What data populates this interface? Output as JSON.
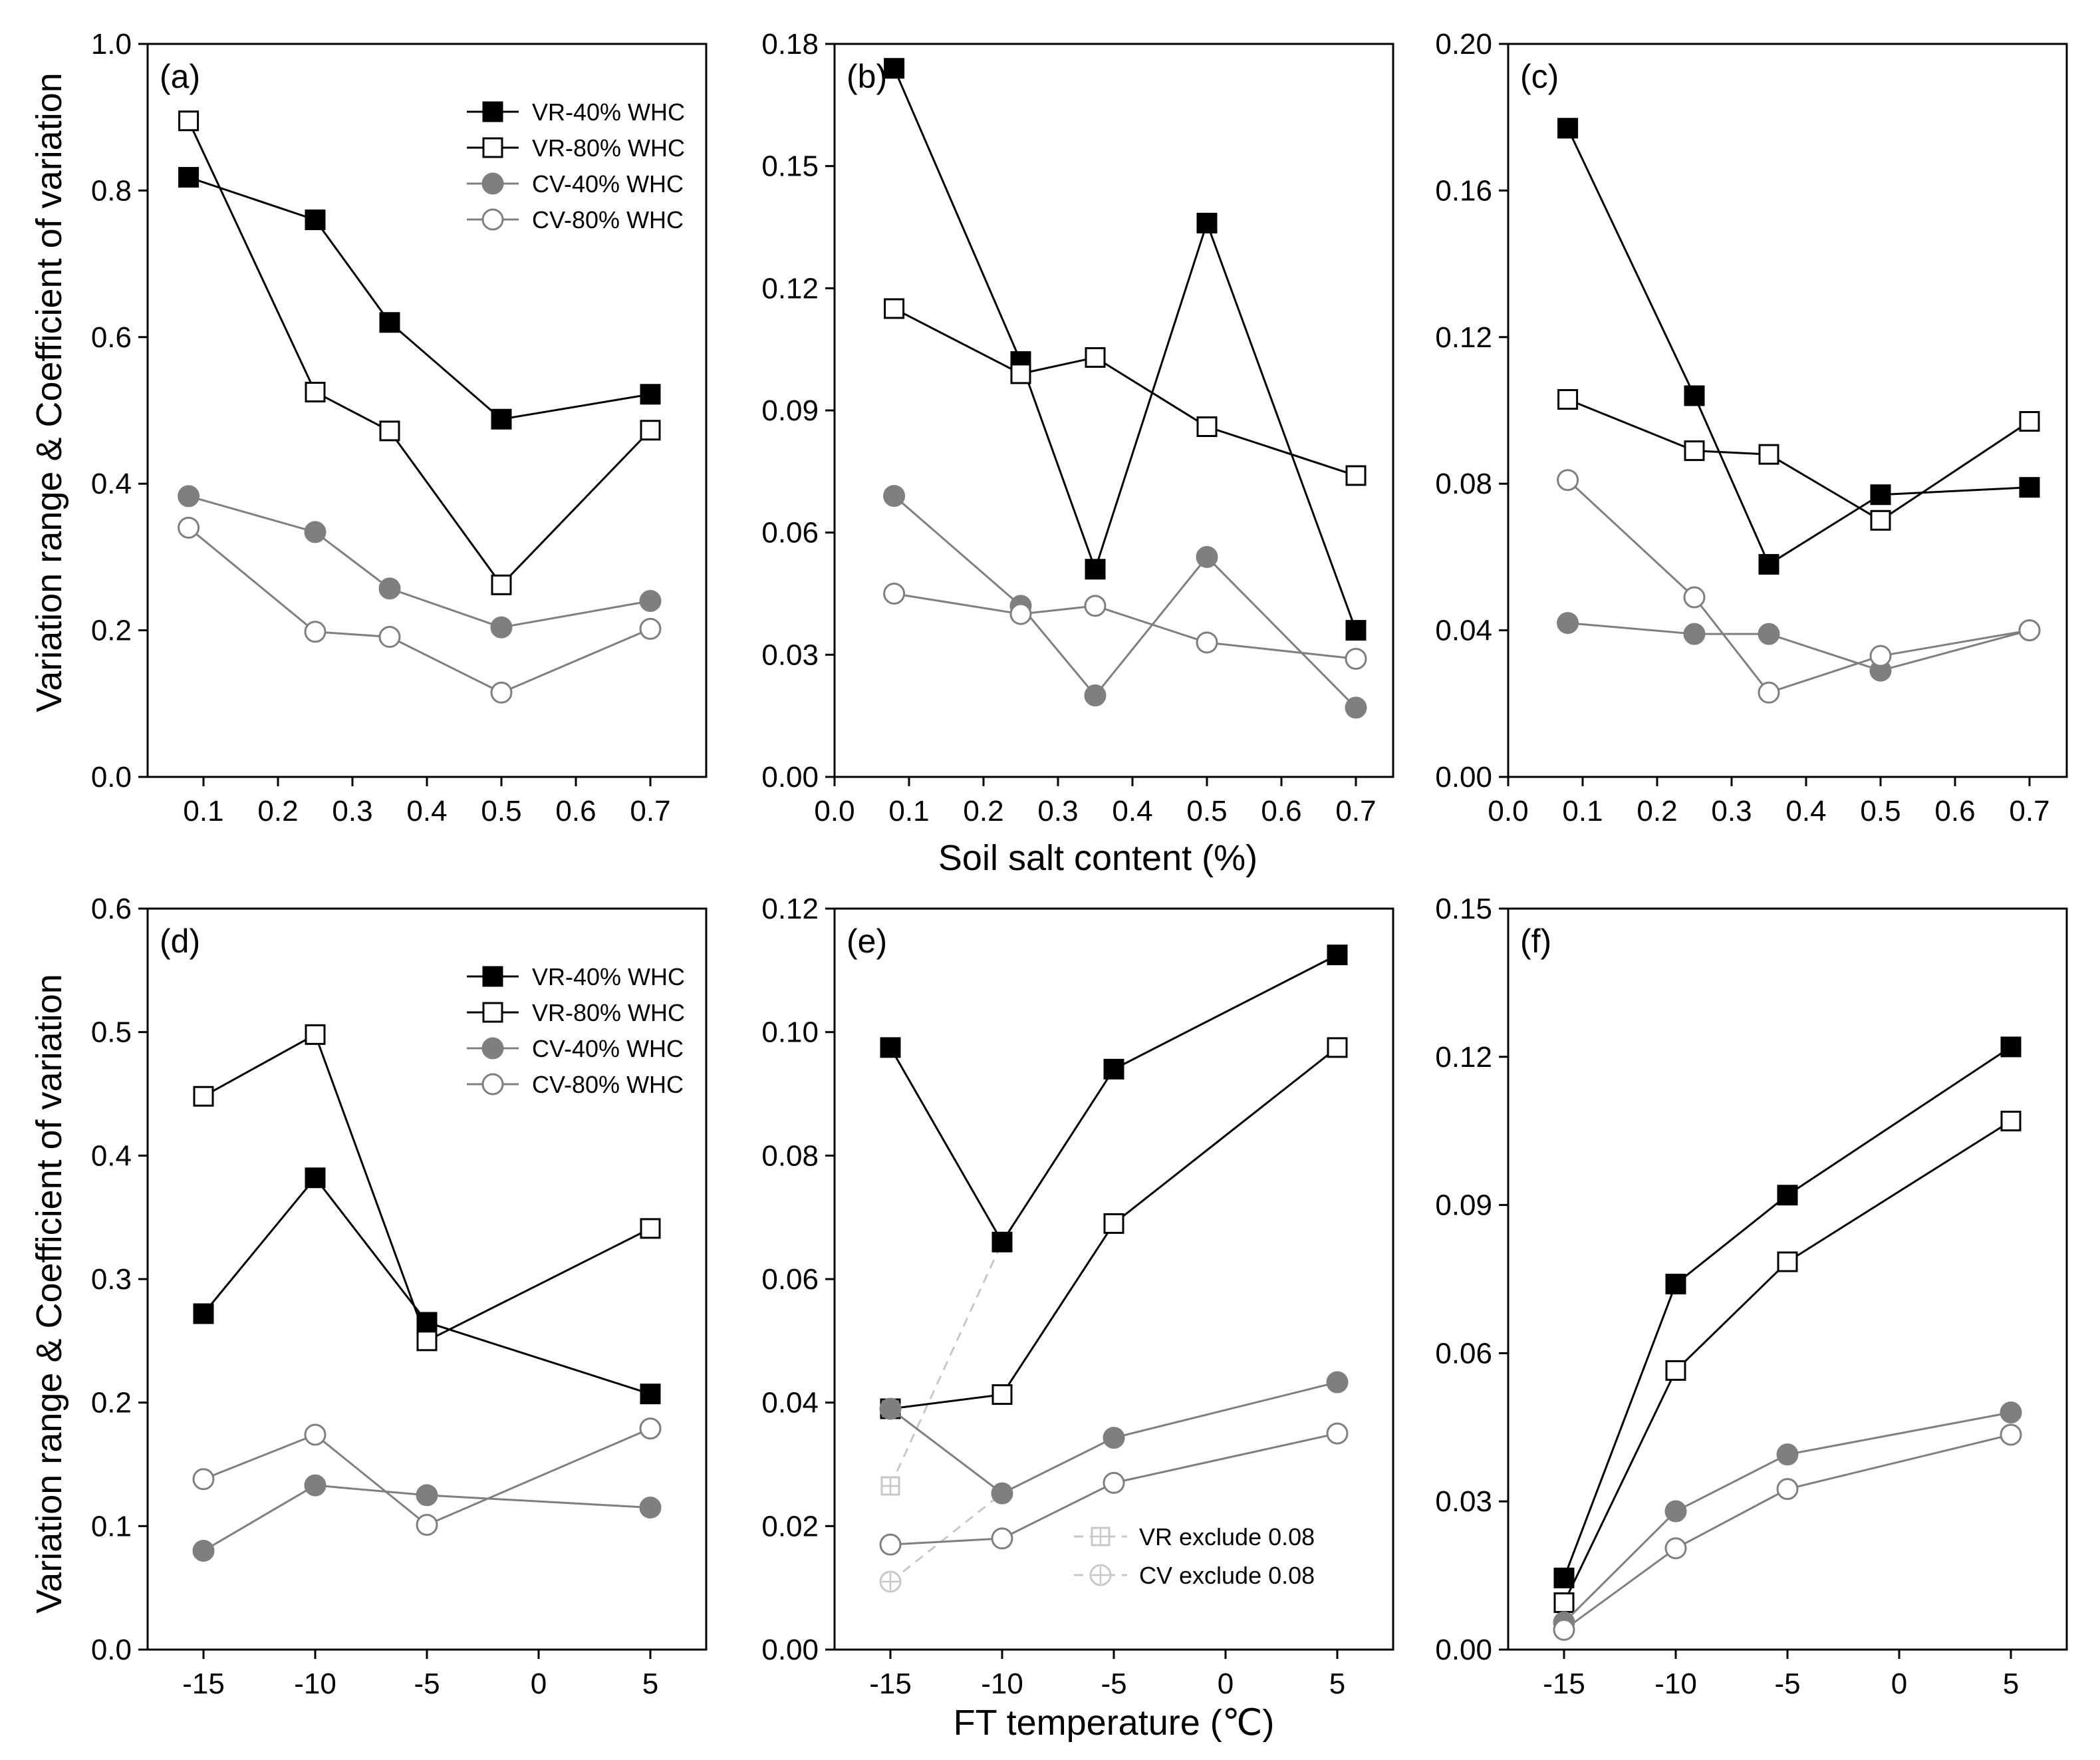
{
  "colors": {
    "black": "#000000",
    "gray": "#7f7f7f",
    "light_gray": "#c8c8c8",
    "white": "#ffffff"
  },
  "axis_titles": {
    "y_top": "Variation range & Coefficient of variation",
    "y_bottom": "Variation range & Coefficient of variation",
    "x_top": "Soil salt content (%)",
    "x_bottom": "FT temperature (℃)"
  },
  "legend_main": [
    "VR-40% WHC",
    "VR-80% WHC",
    "CV-40% WHC",
    "CV-80% WHC"
  ],
  "chart_data": [
    {
      "panel": "(a)",
      "type": "line",
      "xlim": [
        0.025,
        0.775
      ],
      "ylim": [
        0,
        1.0
      ],
      "xticks": [
        0.1,
        0.2,
        0.3,
        0.4,
        0.5,
        0.6,
        0.7
      ],
      "xtick_labels": [
        "0.1",
        "0.2",
        "0.3",
        "0.4",
        "0.5",
        "0.6",
        "0.7"
      ],
      "yticks": [
        0,
        0.2,
        0.4,
        0.6,
        0.8,
        1.0
      ],
      "ytick_labels": [
        "0.0",
        "0.2",
        "0.4",
        "0.6",
        "0.8",
        "1.0"
      ],
      "x": [
        0.08,
        0.25,
        0.35,
        0.5,
        0.7
      ],
      "legend": true,
      "series": [
        {
          "name": "VR-40% WHC",
          "values": [
            0.818,
            0.76,
            0.62,
            0.488,
            0.522
          ]
        },
        {
          "name": "VR-80% WHC",
          "values": [
            0.895,
            0.525,
            0.472,
            0.262,
            0.473
          ]
        },
        {
          "name": "CV-40% WHC",
          "values": [
            0.383,
            0.334,
            0.257,
            0.204,
            0.24
          ]
        },
        {
          "name": "CV-80% WHC",
          "values": [
            0.34,
            0.198,
            0.191,
            0.115,
            0.202
          ]
        }
      ]
    },
    {
      "panel": "(b)",
      "type": "line",
      "xlim": [
        0.0,
        0.75
      ],
      "ylim": [
        0,
        0.18
      ],
      "xticks": [
        0.0,
        0.1,
        0.2,
        0.3,
        0.4,
        0.5,
        0.6,
        0.7
      ],
      "xtick_labels": [
        "0.0",
        "0.1",
        "0.2",
        "0.3",
        "0.4",
        "0.5",
        "0.6",
        "0.7"
      ],
      "yticks": [
        0,
        0.03,
        0.06,
        0.09,
        0.12,
        0.15,
        0.18
      ],
      "ytick_labels": [
        "0.00",
        "0.03",
        "0.06",
        "0.09",
        "0.12",
        "0.15",
        "0.18"
      ],
      "x": [
        0.08,
        0.25,
        0.35,
        0.5,
        0.7
      ],
      "legend": false,
      "series": [
        {
          "name": "VR-40% WHC",
          "values": [
            0.174,
            0.102,
            0.051,
            0.136,
            0.036
          ]
        },
        {
          "name": "VR-80% WHC",
          "values": [
            0.115,
            0.099,
            0.103,
            0.086,
            0.074
          ]
        },
        {
          "name": "CV-40% WHC",
          "values": [
            0.069,
            0.042,
            0.02,
            0.054,
            0.017
          ]
        },
        {
          "name": "CV-80% WHC",
          "values": [
            0.045,
            0.04,
            0.042,
            0.033,
            0.029
          ]
        }
      ]
    },
    {
      "panel": "(c)",
      "type": "line",
      "xlim": [
        0.0,
        0.75
      ],
      "ylim": [
        0,
        0.2
      ],
      "xticks": [
        0.0,
        0.1,
        0.2,
        0.3,
        0.4,
        0.5,
        0.6,
        0.7
      ],
      "xtick_labels": [
        "0.0",
        "0.1",
        "0.2",
        "0.3",
        "0.4",
        "0.5",
        "0.6",
        "0.7"
      ],
      "yticks": [
        0,
        0.04,
        0.08,
        0.12,
        0.16,
        0.2
      ],
      "ytick_labels": [
        "0.00",
        "0.04",
        "0.08",
        "0.12",
        "0.16",
        "0.20"
      ],
      "x": [
        0.08,
        0.25,
        0.35,
        0.5,
        0.7
      ],
      "legend": false,
      "series": [
        {
          "name": "VR-40% WHC",
          "values": [
            0.177,
            0.104,
            0.058,
            0.077,
            0.079
          ]
        },
        {
          "name": "VR-80% WHC",
          "values": [
            0.103,
            0.089,
            0.088,
            0.07,
            0.097
          ]
        },
        {
          "name": "CV-40% WHC",
          "values": [
            0.042,
            0.039,
            0.039,
            0.029,
            0.04
          ]
        },
        {
          "name": "CV-80% WHC",
          "values": [
            0.081,
            0.049,
            0.023,
            0.033,
            0.04
          ]
        }
      ]
    },
    {
      "panel": "(d)",
      "type": "line",
      "xlim": [
        -17.5,
        7.5
      ],
      "ylim": [
        0,
        0.6
      ],
      "xticks": [
        -15,
        -10,
        -5,
        0,
        5
      ],
      "xtick_labels": [
        "-15",
        "-10",
        "-5",
        "0",
        "5"
      ],
      "yticks": [
        0,
        0.1,
        0.2,
        0.3,
        0.4,
        0.5,
        0.6
      ],
      "ytick_labels": [
        "0.0",
        "0.1",
        "0.2",
        "0.3",
        "0.4",
        "0.5",
        "0.6"
      ],
      "x": [
        -15,
        -10,
        -5,
        5
      ],
      "legend": true,
      "series": [
        {
          "name": "VR-40% WHC",
          "values": [
            0.272,
            0.382,
            0.265,
            0.207
          ]
        },
        {
          "name": "VR-80% WHC",
          "values": [
            0.448,
            0.498,
            0.25,
            0.341
          ]
        },
        {
          "name": "CV-40% WHC",
          "values": [
            0.08,
            0.133,
            0.125,
            0.115
          ]
        },
        {
          "name": "CV-80% WHC",
          "values": [
            0.138,
            0.174,
            0.101,
            0.179
          ]
        }
      ]
    },
    {
      "panel": "(e)",
      "type": "line",
      "xlim": [
        -17.5,
        7.5
      ],
      "ylim": [
        0,
        0.12
      ],
      "xticks": [
        -15,
        -10,
        -5,
        0,
        5
      ],
      "xtick_labels": [
        "-15",
        "-10",
        "-5",
        "0",
        "5"
      ],
      "yticks": [
        0,
        0.02,
        0.04,
        0.06,
        0.08,
        0.1,
        0.12
      ],
      "ytick_labels": [
        "0.00",
        "0.02",
        "0.04",
        "0.06",
        "0.08",
        "0.10",
        "0.12"
      ],
      "x": [
        -15,
        -10,
        -5,
        5
      ],
      "legend": false,
      "series": [
        {
          "name": "VR-40% WHC",
          "values": [
            0.0975,
            0.066,
            0.094,
            0.1125
          ]
        },
        {
          "name": "VR-80% WHC",
          "values": [
            0.039,
            0.0413,
            0.069,
            0.0975
          ]
        },
        {
          "name": "CV-40% WHC",
          "values": [
            0.039,
            0.0253,
            0.0343,
            0.0433
          ]
        },
        {
          "name": "CV-80% WHC",
          "values": [
            0.017,
            0.018,
            0.027,
            0.035
          ]
        }
      ],
      "extra_series": [
        {
          "name": "VR exclude 0.08",
          "x": [
            -15,
            -10
          ],
          "values": [
            0.0265,
            0.066
          ]
        },
        {
          "name": "CV exclude 0.08",
          "x": [
            -15,
            -10
          ],
          "values": [
            0.011,
            0.0253
          ]
        }
      ],
      "extra_legend": [
        "VR exclude 0.08",
        "CV exclude 0.08"
      ]
    },
    {
      "panel": "(f)",
      "type": "line",
      "xlim": [
        -17.5,
        7.5
      ],
      "ylim": [
        0,
        0.15
      ],
      "xticks": [
        -15,
        -10,
        -5,
        0,
        5
      ],
      "xtick_labels": [
        "-15",
        "-10",
        "-5",
        "0",
        "5"
      ],
      "yticks": [
        0,
        0.03,
        0.06,
        0.09,
        0.12,
        0.15
      ],
      "ytick_labels": [
        "0.00",
        "0.03",
        "0.06",
        "0.09",
        "0.12",
        "0.15"
      ],
      "x": [
        -15,
        -10,
        -5,
        5
      ],
      "legend": false,
      "series": [
        {
          "name": "VR-40% WHC",
          "values": [
            0.0145,
            0.074,
            0.092,
            0.122
          ]
        },
        {
          "name": "VR-80% WHC",
          "values": [
            0.0095,
            0.0565,
            0.0785,
            0.107
          ]
        },
        {
          "name": "CV-40% WHC",
          "values": [
            0.0055,
            0.028,
            0.0395,
            0.048
          ]
        },
        {
          "name": "CV-80% WHC",
          "values": [
            0.004,
            0.0205,
            0.0325,
            0.0435
          ]
        }
      ]
    }
  ]
}
